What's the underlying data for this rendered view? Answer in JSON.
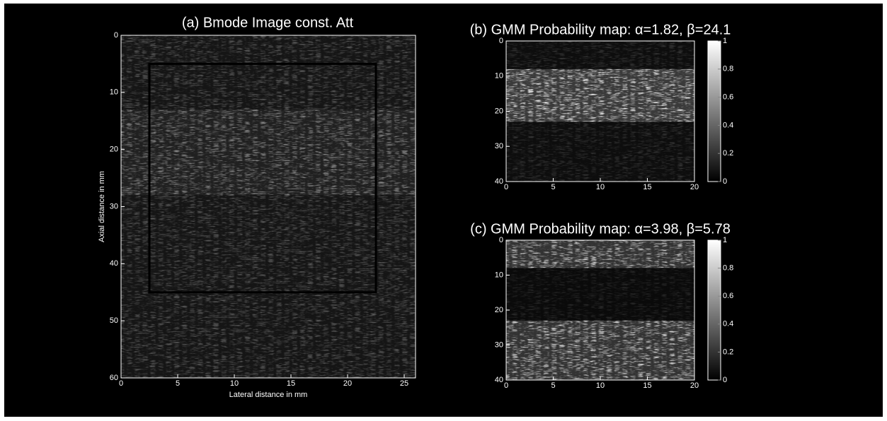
{
  "chart_data": [
    {
      "type": "image",
      "title": "(a) Bmode Image const. Att",
      "xlabel": "Lateral distance in mm",
      "ylabel": "Axial distance in mm",
      "xlim": [
        0,
        26
      ],
      "ylim": [
        0,
        60
      ],
      "xticks": [
        0,
        5,
        10,
        15,
        20,
        25
      ],
      "yticks": [
        0,
        10,
        20,
        30,
        40,
        50,
        60
      ],
      "y_reversed": true,
      "colormap": "gray",
      "regions": [
        {
          "y": [
            0,
            13
          ],
          "level": 0.33
        },
        {
          "y": [
            13,
            28
          ],
          "level": 0.5
        },
        {
          "y": [
            28,
            60
          ],
          "level": 0.33
        }
      ],
      "roi": {
        "x": [
          2.5,
          22.5
        ],
        "y": [
          5,
          45
        ]
      }
    },
    {
      "type": "image",
      "title": "(b) GMM Probability map: α=1.82, β=24.1",
      "xlim": [
        0,
        20
      ],
      "ylim": [
        0,
        40
      ],
      "xticks": [
        0,
        5,
        10,
        15,
        20
      ],
      "yticks": [
        0,
        10,
        20,
        30,
        40
      ],
      "y_reversed": true,
      "colormap": "gray",
      "regions": [
        {
          "y": [
            0,
            8
          ],
          "level": 0.2
        },
        {
          "y": [
            8,
            23
          ],
          "level": 0.9
        },
        {
          "y": [
            23,
            40
          ],
          "level": 0.2
        }
      ],
      "colorbar": {
        "lim": [
          0,
          1
        ],
        "ticks": [
          0,
          0.2,
          0.4,
          0.6,
          0.8,
          1
        ]
      }
    },
    {
      "type": "image",
      "title": "(c) GMM Probability map: α=3.98, β=5.78",
      "xlim": [
        0,
        20
      ],
      "ylim": [
        0,
        40
      ],
      "xticks": [
        0,
        5,
        10,
        15,
        20
      ],
      "yticks": [
        0,
        10,
        20,
        30,
        40
      ],
      "y_reversed": true,
      "colormap": "gray",
      "regions": [
        {
          "y": [
            0,
            8
          ],
          "level": 0.8
        },
        {
          "y": [
            8,
            23
          ],
          "level": 0.15
        },
        {
          "y": [
            23,
            40
          ],
          "level": 0.8
        }
      ],
      "colorbar": {
        "lim": [
          0,
          1
        ],
        "ticks": [
          0,
          0.2,
          0.4,
          0.6,
          0.8,
          1
        ]
      }
    }
  ]
}
